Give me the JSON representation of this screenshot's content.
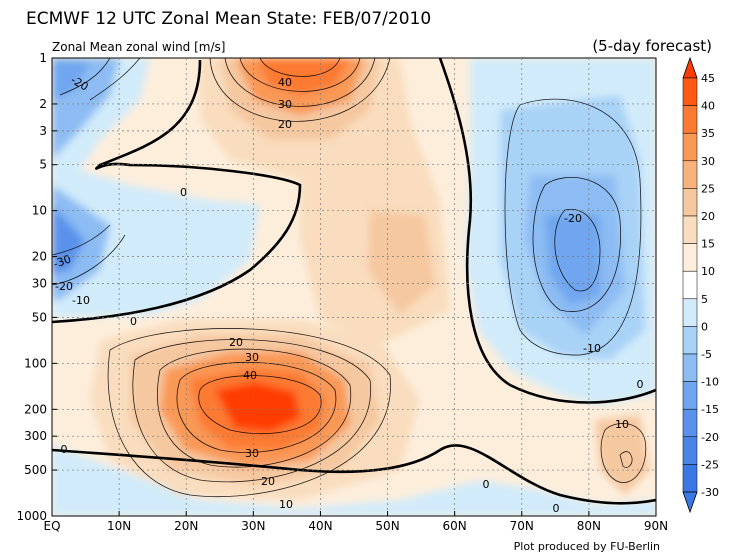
{
  "header": {
    "title": "ECMWF 12 UTC Zonal Mean State: FEB/07/2010",
    "subtitle": "Zonal Mean zonal wind [m/s]",
    "forecast": "(5-day forecast)",
    "credit": "Plot produced by FU-Berlin"
  },
  "chart_data": {
    "type": "contour",
    "title": "ECMWF 12 UTC Zonal Mean State: FEB/07/2010",
    "variable": "Zonal Mean zonal wind [m/s]",
    "x_ticks": [
      "EQ",
      "10N",
      "20N",
      "30N",
      "40N",
      "50N",
      "60N",
      "70N",
      "80N",
      "90N"
    ],
    "y_ticks": [
      "1",
      "2",
      "3",
      "5",
      "10",
      "20",
      "30",
      "50",
      "100",
      "200",
      "300",
      "500",
      "1000"
    ],
    "y_scale": "log",
    "colorbar": {
      "ticks": [
        "45",
        "40",
        "35",
        "30",
        "25",
        "20",
        "15",
        "10",
        "5",
        "0",
        "-5",
        "-10",
        "-15",
        "-20",
        "-25",
        "-30"
      ],
      "colors": [
        "#ff3c00",
        "#ff5a14",
        "#fd7a32",
        "#fa9856",
        "#f8b27c",
        "#f6c8a0",
        "#f9ddbe",
        "#fdeedc",
        "#ffffff",
        "#d2ebfa",
        "#a9d2f7",
        "#8cbcf3",
        "#70a6ef",
        "#5a92eb",
        "#4a84e8",
        "#3b78e6"
      ]
    },
    "contour_labels": [
      {
        "text": "-20"
      },
      {
        "text": "40"
      },
      {
        "text": "30"
      },
      {
        "text": "20"
      },
      {
        "text": "0"
      },
      {
        "text": "-30"
      },
      {
        "text": "-20"
      },
      {
        "text": "-10"
      },
      {
        "text": "0"
      },
      {
        "text": "-20"
      },
      {
        "text": "-10"
      },
      {
        "text": "0"
      },
      {
        "text": "20"
      },
      {
        "text": "30"
      },
      {
        "text": "40"
      },
      {
        "text": "30"
      },
      {
        "text": "20"
      },
      {
        "text": "10"
      },
      {
        "text": "0"
      },
      {
        "text": "0"
      },
      {
        "text": "0"
      },
      {
        "text": "10"
      }
    ]
  }
}
